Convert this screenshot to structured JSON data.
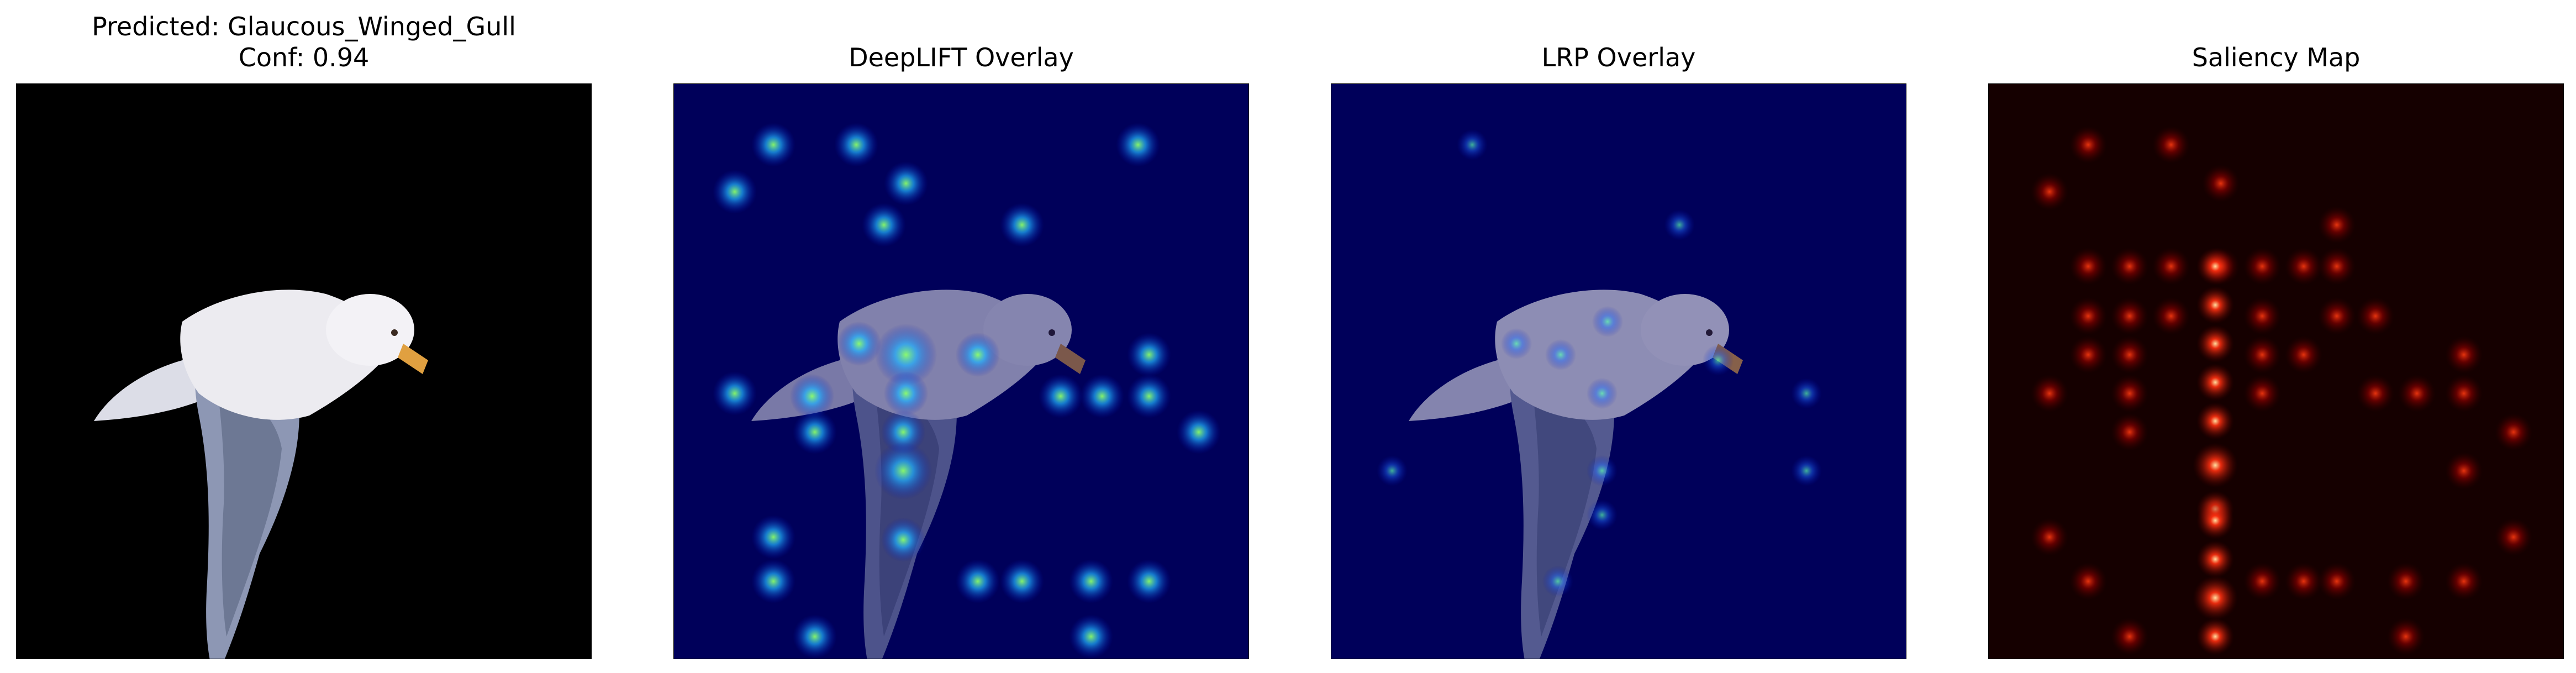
{
  "panels": [
    {
      "id": "original",
      "title_line1": "Predicted: Glaucous_Winged_Gull",
      "title_line2": "Conf: 0.94"
    },
    {
      "id": "deeplift",
      "title": "DeepLIFT Overlay",
      "colormap": "jet"
    },
    {
      "id": "lrp",
      "title": "LRP Overlay",
      "colormap": "jet"
    },
    {
      "id": "saliency",
      "title": "Saliency Map",
      "colormap": "hot"
    }
  ],
  "colors": {
    "background": "#000000",
    "overlay_background": "#00005a",
    "saliency_background": "#150000",
    "bird_body": "#ecebf0",
    "bird_wing": "#5f6b86",
    "beak": "#e0a040"
  }
}
